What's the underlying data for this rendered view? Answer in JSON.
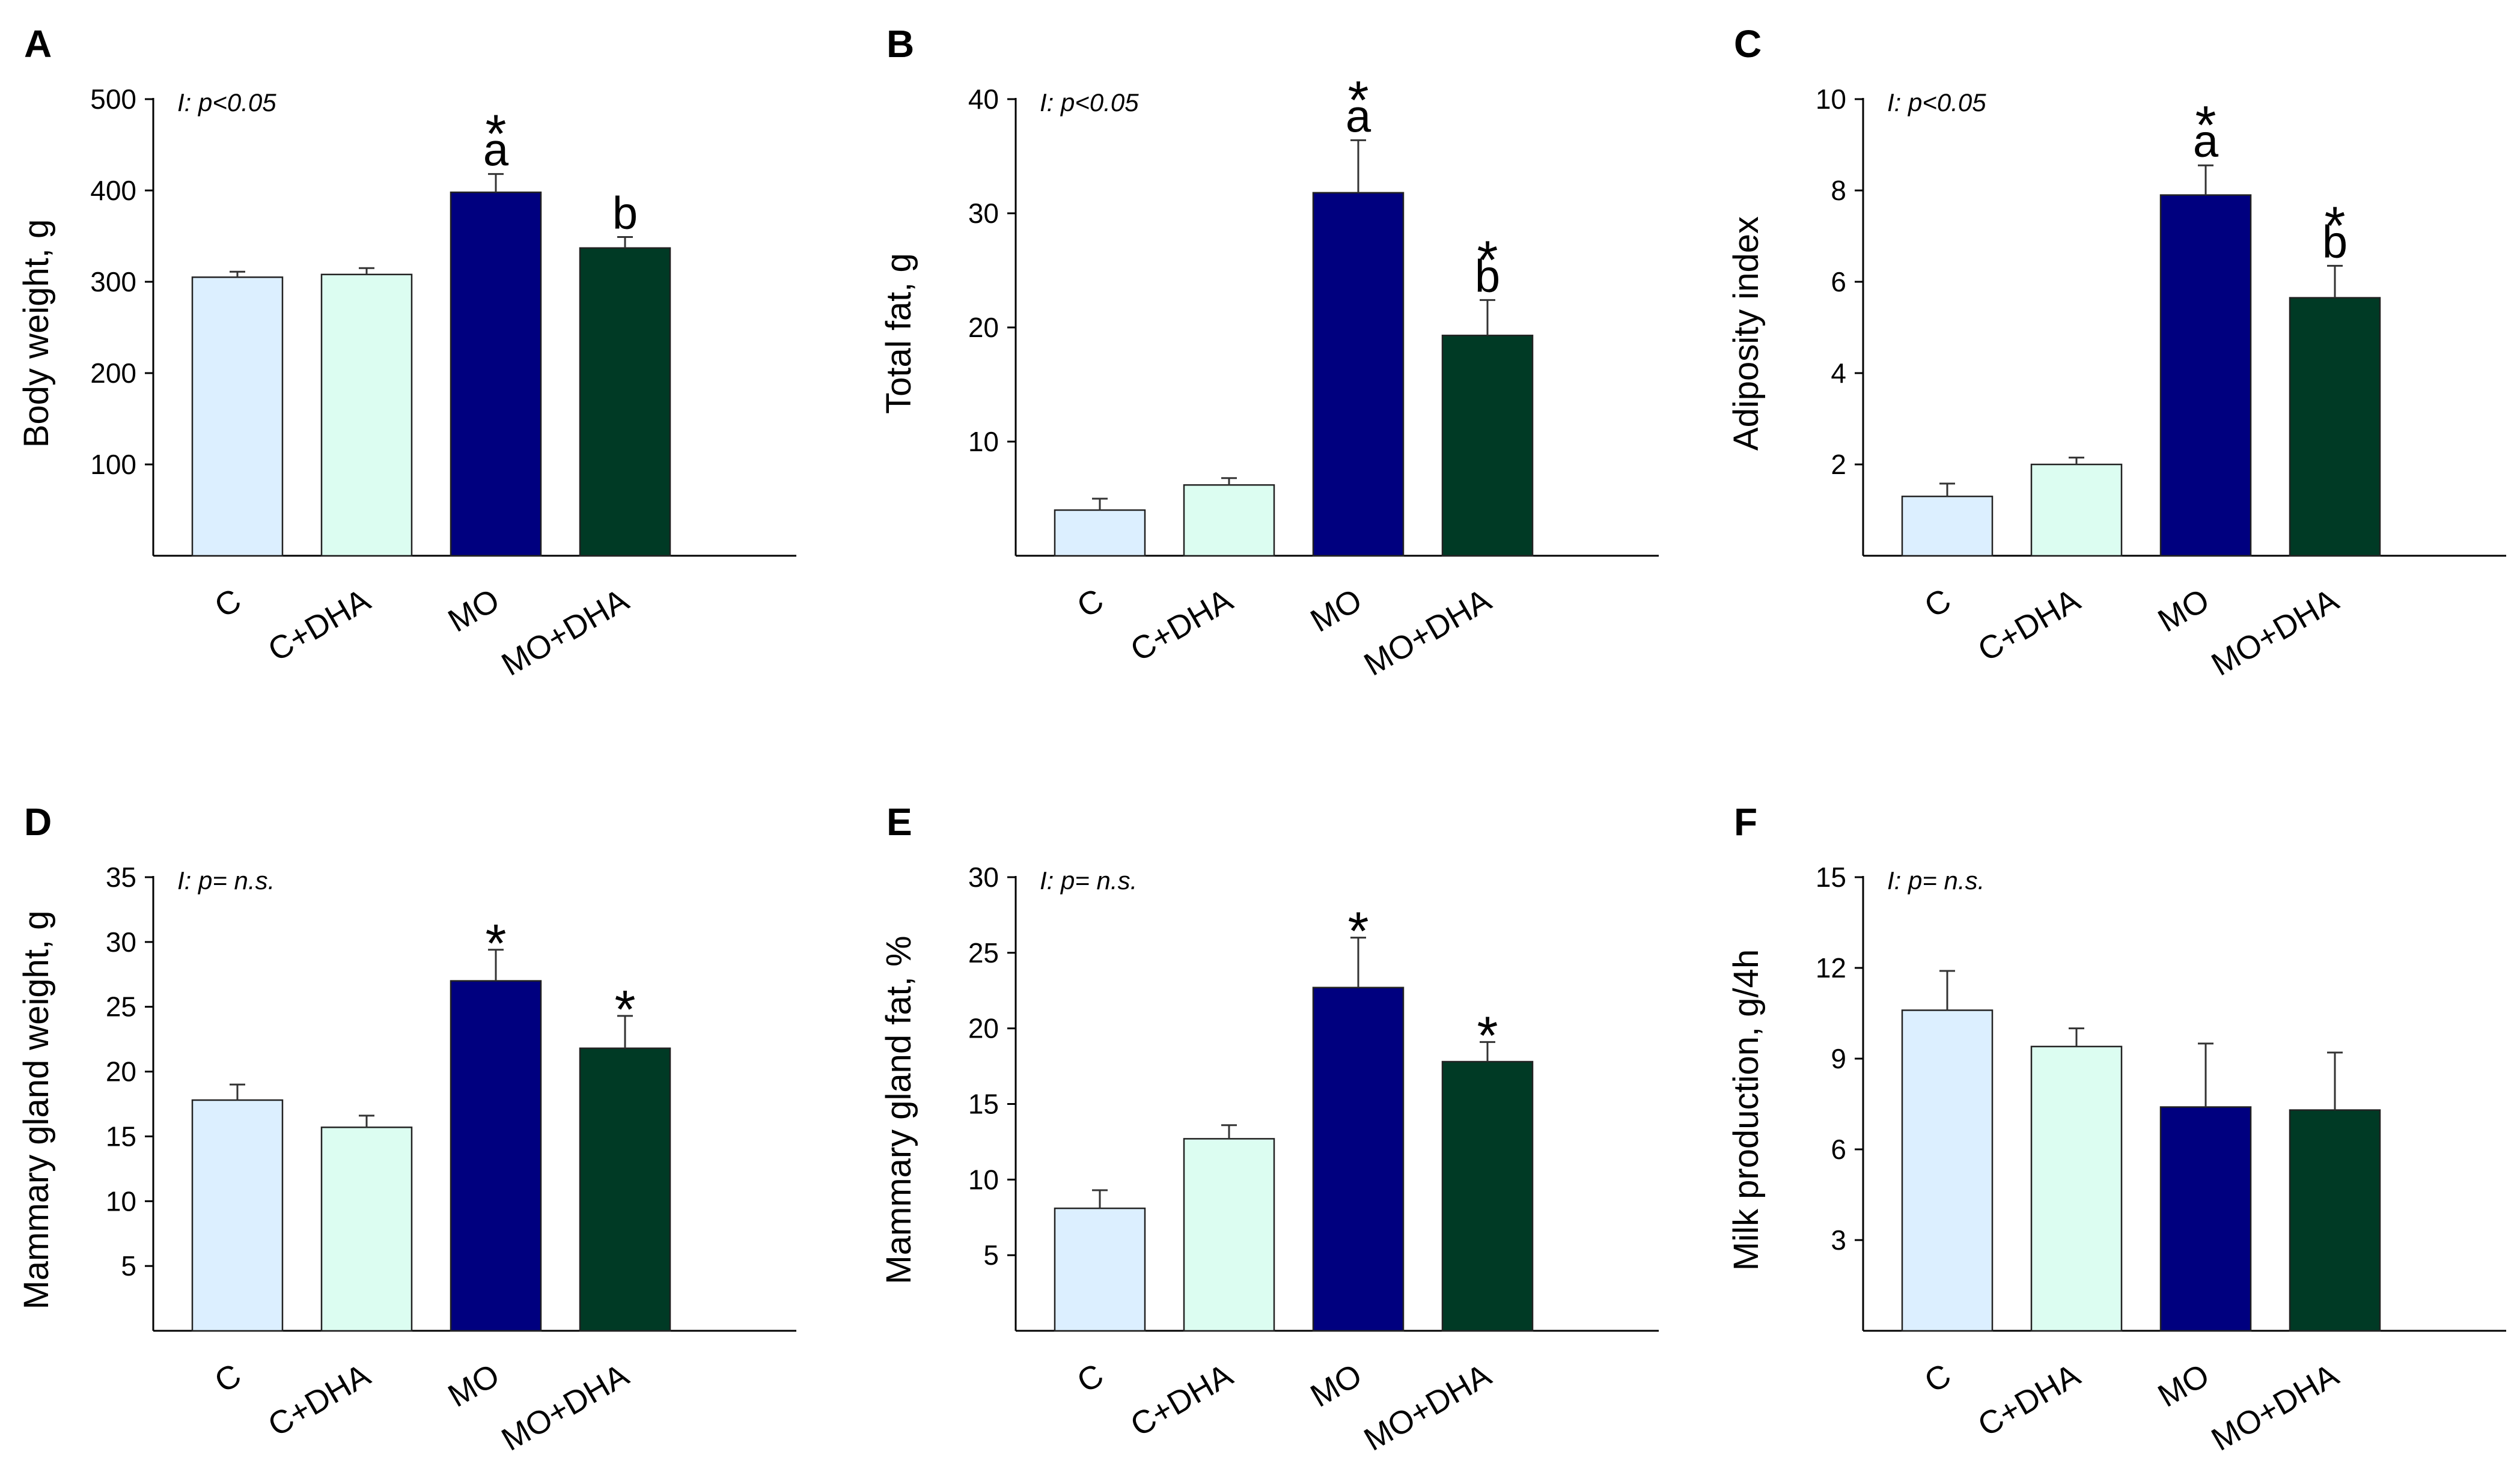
{
  "figure": {
    "categories": [
      "C",
      "C+DHA",
      "MO",
      "MO+DHA"
    ],
    "colors": [
      "#dcefff",
      "#dcfdf1",
      "#00007f",
      "#003a25"
    ]
  },
  "chart_data": [
    {
      "panel": "A",
      "type": "bar",
      "title": "",
      "ylabel": "Body weight, g",
      "xlabel": "",
      "categories": [
        "C",
        "C+DHA",
        "MO",
        "MO+DHA"
      ],
      "values": [
        305,
        308,
        398,
        337
      ],
      "errors": [
        6,
        7,
        20,
        12
      ],
      "ylim": [
        0,
        500
      ],
      "yticks": [
        100,
        200,
        300,
        400,
        500
      ],
      "annotation": "I: p<0.05",
      "markers": [
        {
          "index": 2,
          "lines": [
            "*",
            "a"
          ]
        },
        {
          "index": 3,
          "lines": [
            "b"
          ]
        }
      ]
    },
    {
      "panel": "B",
      "type": "bar",
      "title": "",
      "ylabel": "Total fat, g",
      "xlabel": "",
      "categories": [
        "C",
        "C+DHA",
        "MO",
        "MO+DHA"
      ],
      "values": [
        4,
        6.2,
        31.8,
        19.3
      ],
      "errors": [
        1,
        0.6,
        4.6,
        3.1
      ],
      "ylim": [
        0,
        40
      ],
      "yticks": [
        10,
        20,
        30,
        40
      ],
      "annotation": "I: p<0.05",
      "markers": [
        {
          "index": 2,
          "lines": [
            "*",
            "a"
          ]
        },
        {
          "index": 3,
          "lines": [
            "*",
            "b"
          ]
        }
      ]
    },
    {
      "panel": "C",
      "type": "bar",
      "title": "",
      "ylabel": "Adiposity index",
      "xlabel": "",
      "categories": [
        "C",
        "C+DHA",
        "MO",
        "MO+DHA"
      ],
      "values": [
        1.3,
        2.0,
        7.9,
        5.65
      ],
      "errors": [
        0.28,
        0.15,
        0.65,
        0.7
      ],
      "ylim": [
        0,
        10
      ],
      "yticks": [
        2,
        4,
        6,
        8,
        10
      ],
      "annotation": "I: p<0.05",
      "markers": [
        {
          "index": 2,
          "lines": [
            "*",
            "a"
          ]
        },
        {
          "index": 3,
          "lines": [
            "*",
            "b"
          ]
        }
      ]
    },
    {
      "panel": "D",
      "type": "bar",
      "title": "",
      "ylabel": "Mammary gland weight, g",
      "xlabel": "",
      "categories": [
        "C",
        "C+DHA",
        "MO",
        "MO+DHA"
      ],
      "values": [
        17.8,
        15.7,
        27,
        21.8
      ],
      "errors": [
        1.2,
        0.9,
        2.4,
        2.5
      ],
      "ylim": [
        0,
        35
      ],
      "yticks": [
        5,
        10,
        15,
        20,
        25,
        30,
        35
      ],
      "annotation": "I: p= n.s.",
      "markers": [
        {
          "index": 2,
          "lines": [
            "*"
          ]
        },
        {
          "index": 3,
          "lines": [
            "*"
          ]
        }
      ]
    },
    {
      "panel": "E",
      "type": "bar",
      "title": "",
      "ylabel": "Mammary gland fat, %",
      "xlabel": "",
      "categories": [
        "C",
        "C+DHA",
        "MO",
        "MO+DHA"
      ],
      "values": [
        8.1,
        12.7,
        22.7,
        17.8
      ],
      "errors": [
        1.2,
        0.9,
        3.3,
        1.3
      ],
      "ylim": [
        0,
        30
      ],
      "yticks": [
        5,
        10,
        15,
        20,
        25,
        30
      ],
      "annotation": "I: p= n.s.",
      "markers": [
        {
          "index": 2,
          "lines": [
            "*"
          ]
        },
        {
          "index": 3,
          "lines": [
            "*"
          ]
        }
      ]
    },
    {
      "panel": "F",
      "type": "bar",
      "title": "",
      "ylabel": "Milk production, g/4h",
      "xlabel": "",
      "categories": [
        "C",
        "C+DHA",
        "MO",
        "MO+DHA"
      ],
      "values": [
        10.6,
        9.4,
        7.4,
        7.3
      ],
      "errors": [
        1.3,
        0.6,
        2.1,
        1.9
      ],
      "ylim": [
        0,
        15
      ],
      "yticks": [
        3,
        6,
        9,
        12,
        15
      ],
      "annotation": "I: p= n.s.",
      "markers": []
    }
  ]
}
